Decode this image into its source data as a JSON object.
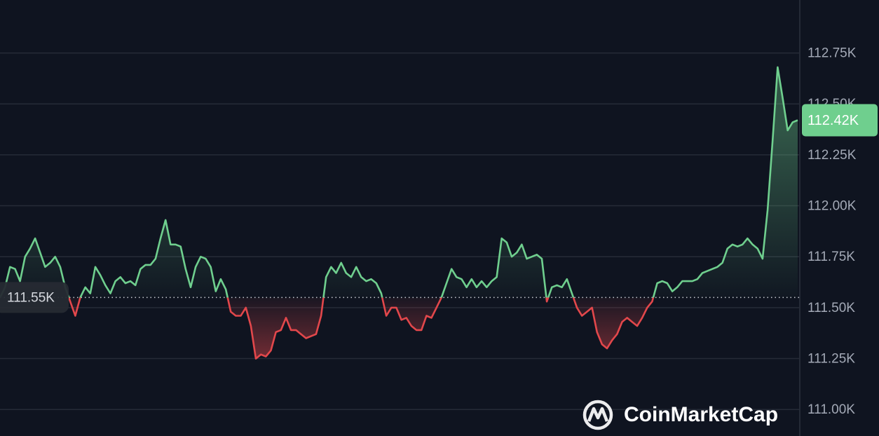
{
  "chart_data": {
    "type": "line",
    "values": [
      111.55,
      111.6,
      111.7,
      111.69,
      111.63,
      111.75,
      111.79,
      111.84,
      111.77,
      111.7,
      111.72,
      111.75,
      111.7,
      111.6,
      111.53,
      111.46,
      111.55,
      111.6,
      111.57,
      111.7,
      111.66,
      111.61,
      111.57,
      111.63,
      111.65,
      111.62,
      111.63,
      111.61,
      111.69,
      111.71,
      111.71,
      111.74,
      111.84,
      111.93,
      111.81,
      111.81,
      111.8,
      111.69,
      111.6,
      111.7,
      111.75,
      111.74,
      111.7,
      111.58,
      111.64,
      111.59,
      111.48,
      111.46,
      111.46,
      111.5,
      111.41,
      111.25,
      111.27,
      111.26,
      111.29,
      111.38,
      111.39,
      111.45,
      111.39,
      111.39,
      111.37,
      111.35,
      111.36,
      111.37,
      111.46,
      111.65,
      111.7,
      111.67,
      111.72,
      111.67,
      111.65,
      111.7,
      111.65,
      111.63,
      111.64,
      111.62,
      111.57,
      111.46,
      111.5,
      111.5,
      111.44,
      111.45,
      111.41,
      111.39,
      111.39,
      111.46,
      111.45,
      111.5,
      111.55,
      111.62,
      111.69,
      111.65,
      111.64,
      111.6,
      111.64,
      111.6,
      111.63,
      111.6,
      111.63,
      111.65,
      111.84,
      111.82,
      111.75,
      111.77,
      111.81,
      111.74,
      111.75,
      111.76,
      111.74,
      111.53,
      111.6,
      111.61,
      111.6,
      111.64,
      111.57,
      111.5,
      111.46,
      111.48,
      111.5,
      111.38,
      111.32,
      111.3,
      111.34,
      111.37,
      111.43,
      111.45,
      111.43,
      111.41,
      111.45,
      111.5,
      111.53,
      111.62,
      111.63,
      111.62,
      111.58,
      111.6,
      111.63,
      111.63,
      111.63,
      111.64,
      111.67,
      111.68,
      111.69,
      111.7,
      111.72,
      111.79,
      111.81,
      111.8,
      111.81,
      111.84,
      111.81,
      111.79,
      111.74,
      111.98,
      112.32,
      112.68,
      112.53,
      112.37,
      112.41,
      112.42
    ],
    "up_color": "#6fcf8e",
    "down_color": "#e2474b",
    "ylim": [
      110.87,
      113.01
    ],
    "yticks": [
      {
        "value": 111.0,
        "label": "111.00K"
      },
      {
        "value": 111.25,
        "label": "111.25K"
      },
      {
        "value": 111.5,
        "label": "111.50K"
      },
      {
        "value": 111.75,
        "label": "111.75K"
      },
      {
        "value": 112.0,
        "label": "112.00K"
      },
      {
        "value": 112.25,
        "label": "112.25K"
      },
      {
        "value": 112.5,
        "label": "112.50K"
      },
      {
        "value": 112.75,
        "label": "112.75K"
      }
    ],
    "grid": true,
    "baseline": {
      "value": 111.55,
      "label": "111.55K"
    },
    "price_label": {
      "value": 112.42,
      "label": "112.42K"
    },
    "watermark": "CoinMarketCap"
  }
}
